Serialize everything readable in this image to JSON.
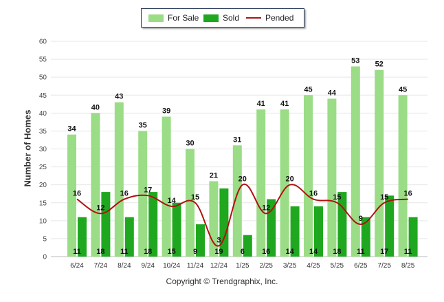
{
  "legend": {
    "for_sale": "For Sale",
    "sold": "Sold",
    "pended": "Pended"
  },
  "ylabel": "Number of Homes",
  "copyright": "Copyright © Trendgraphix, Inc.",
  "colors": {
    "for_sale": "#9bdc86",
    "sold": "#1fa81f",
    "pended": "#b01010",
    "grid": "#e6e6e6"
  },
  "chart_data": {
    "type": "bar",
    "categories": [
      "6/24",
      "7/24",
      "8/24",
      "9/24",
      "10/24",
      "11/24",
      "12/24",
      "1/25",
      "2/25",
      "3/25",
      "4/25",
      "5/25",
      "6/25",
      "7/25",
      "8/25"
    ],
    "series": [
      {
        "name": "For Sale",
        "type": "bar",
        "values": [
          34,
          40,
          43,
          35,
          39,
          30,
          21,
          31,
          41,
          41,
          45,
          44,
          53,
          52,
          45
        ]
      },
      {
        "name": "Sold",
        "type": "bar",
        "values": [
          11,
          18,
          11,
          18,
          15,
          9,
          19,
          6,
          16,
          14,
          14,
          18,
          11,
          17,
          11
        ]
      },
      {
        "name": "Pended",
        "type": "line",
        "values": [
          16,
          12,
          16,
          17,
          14,
          15,
          3,
          20,
          12,
          20,
          16,
          15,
          9,
          15,
          16
        ]
      }
    ],
    "ylabel": "Number of Homes",
    "xlabel": "",
    "ylim": [
      0,
      60
    ],
    "yticks": [
      0,
      5,
      10,
      15,
      20,
      25,
      30,
      35,
      40,
      45,
      50,
      55,
      60
    ],
    "grid": true,
    "legend": "top"
  }
}
